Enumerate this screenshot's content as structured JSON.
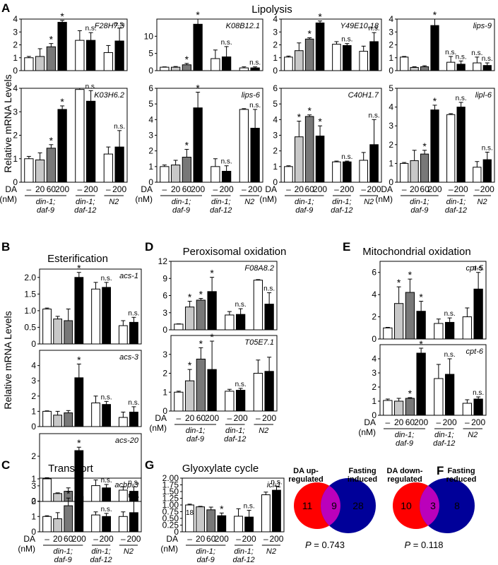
{
  "panel_letters": {
    "A": "A",
    "B": "B",
    "C": "C",
    "D": "D",
    "E": "E",
    "F": "F",
    "G": "G"
  },
  "section_titles": {
    "A": "Lipolysis",
    "B": "Esterification",
    "C": "Transport",
    "D": "Peroxisomal   oxidation",
    "E": "Mitochondrial   oxidation",
    "G": "Glyoxylate   cycle"
  },
  "ylabel": "Relative  mRNA  Levels",
  "x_axis": {
    "da_label": "DA",
    "unit_label": "(nM)",
    "doses": [
      "–",
      "20",
      "60",
      "200",
      "–",
      "200",
      "–",
      "200"
    ],
    "group_labels": [
      "din-1; daf-9",
      "din-1; daf-12",
      "N2"
    ]
  },
  "colors": {
    "c0": "#ffffff",
    "c20": "#c8c8c8",
    "c60": "#787878",
    "c200": "#000000",
    "venn_red": "#ff0000",
    "venn_blue": "#000099",
    "venn_overlap": "#bb00bb"
  },
  "chart_data": [
    {
      "id": "F28H7.3",
      "type": "bar",
      "gene": "F28H7.3",
      "ylim": [
        0,
        4
      ],
      "yticks": [
        "0",
        "1",
        "2",
        "3",
        "4"
      ],
      "categories": [
        "din-1; daf-9 –",
        "din-1; daf-9 20",
        "din-1; daf-9 60",
        "din-1; daf-9 200",
        "din-1; daf-12 –",
        "din-1; daf-12 200",
        "N2 –",
        "N2 200"
      ],
      "values": [
        1.0,
        1.1,
        1.85,
        3.75,
        2.35,
        2.35,
        1.4,
        2.3
      ],
      "errors": [
        0.1,
        0.6,
        0.25,
        0.15,
        0.75,
        0.6,
        0.55,
        1.0
      ],
      "marks": [
        "",
        "",
        "*",
        "*",
        "",
        "n.s.",
        "",
        "n.s."
      ],
      "counts": [
        "",
        "",
        "",
        "19",
        "",
        "",
        "",
        ""
      ]
    },
    {
      "id": "K08B12.1",
      "type": "bar",
      "gene": "K08B12.1",
      "ylim": [
        0,
        15
      ],
      "yticks": [
        "0",
        "5",
        "10"
      ],
      "categories": [
        "din-1; daf-9 –",
        "din-1; daf-9 20",
        "din-1; daf-9 60",
        "din-1; daf-9 200",
        "din-1; daf-12 –",
        "din-1; daf-12 200",
        "N2 –",
        "N2 200"
      ],
      "values": [
        1.0,
        1.0,
        1.7,
        13.5,
        3.5,
        4.0,
        0.8,
        0.8
      ],
      "errors": [
        0.1,
        0.2,
        0.4,
        1.5,
        2.5,
        3.0,
        0.3,
        0.3
      ],
      "marks": [
        "",
        "",
        "*",
        "*",
        "",
        "n.s.",
        "",
        "n.s."
      ],
      "counts": [
        "",
        "",
        "",
        "21",
        "",
        "",
        "",
        ""
      ]
    },
    {
      "id": "Y49E10.18",
      "type": "bar",
      "gene": "Y49E10.18",
      "ylim": [
        0,
        4
      ],
      "yticks": [
        "0",
        "1",
        "2",
        "3",
        "4"
      ],
      "categories": [
        "din-1; daf-9 –",
        "din-1; daf-9 20",
        "din-1; daf-9 60",
        "din-1; daf-9 200",
        "din-1; daf-12 –",
        "din-1; daf-12 200",
        "N2 –",
        "N2 200"
      ],
      "values": [
        1.05,
        1.55,
        2.45,
        3.7,
        2.05,
        1.95,
        1.5,
        2.25
      ],
      "errors": [
        0.08,
        0.6,
        0.1,
        0.15,
        0.2,
        0.15,
        0.4,
        0.7
      ],
      "marks": [
        "",
        "",
        "*",
        "*",
        "",
        "n.s.",
        "",
        "n.s."
      ],
      "counts": [
        "",
        "",
        "",
        "21",
        "",
        "",
        "",
        ""
      ]
    },
    {
      "id": "lips-9",
      "type": "bar",
      "gene": "lips-9",
      "ylim": [
        0,
        4
      ],
      "yticks": [
        "0",
        "1",
        "2",
        "3",
        "4"
      ],
      "categories": [
        "din-1; daf-9 –",
        "din-1; daf-9 20",
        "din-1; daf-9 60",
        "din-1; daf-9 200",
        "din-1; daf-12 –",
        "din-1; daf-12 200",
        "N2 –",
        "N2 200"
      ],
      "values": [
        1.05,
        0.25,
        0.3,
        3.5,
        0.65,
        0.5,
        0.6,
        0.4
      ],
      "errors": [
        0.05,
        0.05,
        0.08,
        0.7,
        0.45,
        0.25,
        0.45,
        0.2
      ],
      "marks": [
        "",
        "",
        "",
        "*",
        "n.s.",
        "n.s.",
        "n.s.",
        "n.s."
      ],
      "counts": [
        "",
        "",
        "",
        "25",
        "",
        "",
        "",
        ""
      ]
    },
    {
      "id": "K03H6.2",
      "type": "bar",
      "gene": "K03H6.2",
      "ylim": [
        0,
        4
      ],
      "yticks": [
        "0",
        "1",
        "2",
        "3",
        "4"
      ],
      "categories": [
        "din-1; daf-9 –",
        "din-1; daf-9 20",
        "din-1; daf-9 60",
        "din-1; daf-9 200",
        "din-1; daf-12 –",
        "din-1; daf-12 200",
        "N2 –",
        "N2 200"
      ],
      "values": [
        1.0,
        0.95,
        1.45,
        3.1,
        3.95,
        3.45,
        1.2,
        1.5
      ],
      "errors": [
        0.1,
        0.3,
        0.15,
        0.15,
        0.35,
        0.45,
        0.3,
        0.7
      ],
      "marks": [
        "",
        "",
        "*",
        "*",
        "",
        "n.s.",
        "",
        "n.s."
      ],
      "counts": [
        "",
        "",
        "",
        "23",
        "",
        "",
        "",
        ""
      ]
    },
    {
      "id": "lips-6",
      "type": "bar",
      "gene": "lips-6",
      "ylim": [
        0,
        6
      ],
      "yticks": [
        "0",
        "1",
        "2",
        "3",
        "4",
        "5",
        "6"
      ],
      "categories": [
        "din-1; daf-9 –",
        "din-1; daf-9 20",
        "din-1; daf-9 60",
        "din-1; daf-9 200",
        "din-1; daf-12 –",
        "din-1; daf-12 200",
        "N2 –",
        "N2 200"
      ],
      "values": [
        1.0,
        1.1,
        1.6,
        4.75,
        1.0,
        0.7,
        4.65,
        3.45
      ],
      "errors": [
        0.1,
        0.3,
        0.5,
        1.0,
        0.5,
        0.35,
        0.05,
        1.2
      ],
      "marks": [
        "",
        "",
        "*",
        "*",
        "",
        "n.s.",
        "",
        "n.s."
      ],
      "counts": [
        "",
        "",
        "",
        "26",
        "",
        "",
        "",
        ""
      ]
    },
    {
      "id": "C40H1.7",
      "type": "bar",
      "gene": "C40H1.7",
      "ylim": [
        0,
        6
      ],
      "yticks": [
        "0",
        "1",
        "2",
        "3",
        "4",
        "5",
        "6"
      ],
      "categories": [
        "din-1; daf-9 –",
        "din-1; daf-9 20",
        "din-1; daf-9 60",
        "din-1; daf-9 200",
        "din-1; daf-12 –",
        "din-1; daf-12 200",
        "N2 –",
        "N2 200"
      ],
      "values": [
        1.0,
        2.9,
        4.2,
        2.95,
        1.3,
        1.3,
        1.4,
        2.4
      ],
      "errors": [
        0.05,
        1.0,
        0.1,
        0.65,
        0.05,
        0.05,
        0.5,
        1.6
      ],
      "marks": [
        "",
        "*",
        "*",
        "*",
        "",
        "n.s.",
        "",
        "n.s."
      ],
      "counts": [
        "",
        "",
        "",
        "23",
        "",
        "",
        "",
        ""
      ]
    },
    {
      "id": "lipl-6",
      "type": "bar",
      "gene": "lipl-6",
      "ylim": [
        0,
        5
      ],
      "yticks": [
        "0",
        "1",
        "2",
        "3",
        "4",
        "5"
      ],
      "categories": [
        "din-1; daf-9 –",
        "din-1; daf-9 20",
        "din-1; daf-9 60",
        "din-1; daf-9 200",
        "din-1; daf-12 –",
        "din-1; daf-12 200",
        "N2 –",
        "N2 200"
      ],
      "values": [
        1.0,
        1.15,
        1.5,
        3.85,
        3.6,
        4.0,
        0.8,
        1.2
      ],
      "errors": [
        0.05,
        0.55,
        0.2,
        0.25,
        0.05,
        0.25,
        0.3,
        0.4
      ],
      "marks": [
        "",
        "",
        "*",
        "*",
        "",
        "n.s.",
        "",
        "n.s."
      ],
      "counts": [
        "",
        "",
        "",
        "24",
        "",
        "",
        "",
        ""
      ]
    },
    {
      "id": "acs-1",
      "type": "bar",
      "gene": "acs-1",
      "ylim": [
        0,
        2.25
      ],
      "yticks": [
        "0",
        "0.5",
        "1.0",
        "1.5",
        "2.0"
      ],
      "categories": [
        "din-1; daf-9 –",
        "din-1; daf-9 20",
        "din-1; daf-9 60",
        "din-1; daf-9 200",
        "din-1; daf-12 –",
        "din-1; daf-12 200",
        "N2 –",
        "N2 200"
      ],
      "values": [
        1.05,
        0.75,
        0.7,
        2.0,
        1.65,
        1.7,
        0.55,
        0.65
      ],
      "errors": [
        0.03,
        0.08,
        0.35,
        0.15,
        0.2,
        0.15,
        0.15,
        0.15
      ],
      "marks": [
        "",
        "",
        "",
        "*",
        "",
        "n.s.",
        "",
        "n.s."
      ],
      "counts": [
        "",
        "",
        "",
        "20",
        "",
        "",
        "",
        ""
      ]
    },
    {
      "id": "acs-3",
      "type": "bar",
      "gene": "acs-3",
      "ylim": [
        0,
        5
      ],
      "yticks": [
        "0",
        "1",
        "2",
        "3",
        "4"
      ],
      "categories": [
        "din-1; daf-9 –",
        "din-1; daf-9 20",
        "din-1; daf-9 60",
        "din-1; daf-9 200",
        "din-1; daf-12 –",
        "din-1; daf-12 200",
        "N2 –",
        "N2 200"
      ],
      "values": [
        1.0,
        0.75,
        0.9,
        3.2,
        1.55,
        1.45,
        0.6,
        0.95
      ],
      "errors": [
        0.03,
        0.25,
        0.15,
        0.9,
        0.45,
        0.2,
        0.35,
        0.35
      ],
      "marks": [
        "",
        "",
        "",
        "*",
        "",
        "n.s.",
        "",
        "n.s."
      ],
      "counts": [
        "",
        "",
        "",
        "23",
        "",
        "",
        "",
        ""
      ]
    },
    {
      "id": "acs-20",
      "type": "bar",
      "gene": "acs-20",
      "ylim": [
        0,
        3
      ],
      "yticks": [
        "0",
        "1",
        "2"
      ],
      "categories": [
        "din-1; daf-9 –",
        "din-1; daf-9 20",
        "din-1; daf-9 60",
        "din-1; daf-9 200",
        "din-1; daf-12 –",
        "din-1; daf-12 200",
        "N2 –",
        "N2 200"
      ],
      "values": [
        1.0,
        0.35,
        0.45,
        2.25,
        0.7,
        0.6,
        0.5,
        0.45
      ],
      "errors": [
        0.05,
        0.03,
        0.15,
        0.15,
        0.25,
        0.15,
        0.15,
        0.2
      ],
      "marks": [
        "",
        "",
        "",
        "*",
        "",
        "n.s.",
        "",
        "n.s."
      ],
      "counts": [
        "",
        "",
        "",
        "22",
        "",
        "",
        "",
        ""
      ]
    },
    {
      "id": "acbp-3",
      "type": "bar",
      "gene": "acbp-3",
      "ylim": [
        0,
        3.5
      ],
      "yticks": [
        "0",
        "1",
        "2",
        "3"
      ],
      "categories": [
        "din-1; daf-9 –",
        "din-1; daf-9 20",
        "din-1; daf-9 60",
        "din-1; daf-9 200",
        "din-1; daf-12 –",
        "din-1; daf-12 200",
        "N2 –",
        "N2 200"
      ],
      "values": [
        1.0,
        0.85,
        1.7,
        2.3,
        1.1,
        1.0,
        1.0,
        1.25
      ],
      "errors": [
        0.05,
        0.4,
        0.5,
        0.75,
        0.2,
        0.2,
        0.3,
        0.85
      ],
      "marks": [
        "",
        "",
        "*",
        "*",
        "",
        "n.s.",
        "",
        "n.s."
      ],
      "counts": [
        "",
        "",
        "",
        "20",
        "",
        "",
        "",
        ""
      ]
    },
    {
      "id": "F08A8.2",
      "type": "bar",
      "gene": "F08A8.2",
      "ylim": [
        0,
        12
      ],
      "yticks": [
        "0",
        "3",
        "6",
        "9",
        "12"
      ],
      "categories": [
        "din-1; daf-9 –",
        "din-1; daf-9 20",
        "din-1; daf-9 60",
        "din-1; daf-9 200",
        "din-1; daf-12 –",
        "din-1; daf-12 200",
        "N2 –",
        "N2 200"
      ],
      "values": [
        1.0,
        4.0,
        5.2,
        6.7,
        2.6,
        2.7,
        8.7,
        4.5
      ],
      "errors": [
        0.05,
        1.0,
        0.3,
        2.5,
        0.6,
        1.0,
        0.1,
        2.0
      ],
      "marks": [
        "",
        "*",
        "*",
        "*",
        "",
        "n.s.",
        "",
        "n.s."
      ],
      "counts": [
        "",
        "",
        "",
        "22",
        "",
        "",
        "",
        ""
      ]
    },
    {
      "id": "T05E7.1",
      "type": "bar",
      "gene": "T05E7.1",
      "ylim": [
        0,
        4
      ],
      "yticks": [
        "0",
        "1",
        "2",
        "3"
      ],
      "categories": [
        "din-1; daf-9 –",
        "din-1; daf-9 20",
        "din-1; daf-9 60",
        "din-1; daf-9 200",
        "din-1; daf-12 –",
        "din-1; daf-12 200",
        "N2 –",
        "N2 200"
      ],
      "values": [
        1.0,
        1.6,
        2.75,
        2.2,
        1.05,
        1.1,
        2.0,
        2.1
      ],
      "errors": [
        0.05,
        0.6,
        0.6,
        1.5,
        0.1,
        0.1,
        0.7,
        0.75
      ],
      "marks": [
        "",
        "*",
        "*",
        "*",
        "",
        "n.s.",
        "",
        ""
      ],
      "counts": [
        "",
        "",
        "",
        "22",
        "",
        "",
        "",
        ""
      ]
    },
    {
      "id": "cpt-5",
      "type": "bar",
      "gene": "cpt-5",
      "ylim": [
        0,
        7
      ],
      "yticks": [
        "0",
        "2",
        "4",
        "6"
      ],
      "categories": [
        "din-1; daf-9 –",
        "din-1; daf-9 20",
        "din-1; daf-9 60",
        "din-1; daf-9 200",
        "din-1; daf-12 –",
        "din-1; daf-12 200",
        "N2 –",
        "N2 200"
      ],
      "values": [
        1.0,
        3.2,
        4.2,
        2.5,
        1.4,
        1.5,
        2.0,
        4.5
      ],
      "errors": [
        0.05,
        1.5,
        1.2,
        0.9,
        0.4,
        0.4,
        0.8,
        1.5
      ],
      "marks": [
        "",
        "*",
        "*",
        "*",
        "",
        "n.s.",
        "",
        "n.s."
      ],
      "counts": [
        "",
        "",
        "",
        "23",
        "",
        "",
        "",
        ""
      ]
    },
    {
      "id": "cpt-6",
      "type": "bar",
      "gene": "cpt-6",
      "ylim": [
        0,
        5
      ],
      "yticks": [
        "0",
        "1",
        "2",
        "3",
        "4"
      ],
      "categories": [
        "din-1; daf-9 –",
        "din-1; daf-9 20",
        "din-1; daf-9 60",
        "din-1; daf-9 200",
        "din-1; daf-12 –",
        "din-1; daf-12 200",
        "N2 –",
        "N2 200"
      ],
      "values": [
        1.05,
        1.0,
        1.2,
        4.4,
        2.6,
        2.9,
        0.85,
        1.15
      ],
      "errors": [
        0.1,
        0.2,
        0.05,
        0.35,
        1.0,
        1.1,
        0.25,
        0.15
      ],
      "marks": [
        "",
        "",
        "*",
        "*",
        "",
        "n.s.",
        "",
        "n.s."
      ],
      "counts": [
        "",
        "",
        "",
        "24",
        "",
        "",
        "",
        ""
      ]
    },
    {
      "id": "icl-1",
      "type": "bar",
      "gene": "icl-1",
      "ylim": [
        0,
        2
      ],
      "yticks": [
        "0",
        "0.25",
        "0.50",
        "0.75",
        "1.00",
        "1.25",
        "1.50",
        "1.75",
        "2.00"
      ],
      "categories": [
        "din-1; daf-9 –",
        "din-1; daf-9 20",
        "din-1; daf-9 60",
        "din-1; daf-9 200",
        "din-1; daf-12 –",
        "din-1; daf-12 200",
        "N2 –",
        "N2 200"
      ],
      "values": [
        1.0,
        0.93,
        0.82,
        0.6,
        0.58,
        0.55,
        1.38,
        1.55
      ],
      "errors": [
        0.03,
        0.02,
        0.1,
        0.1,
        0.28,
        0.25,
        0.1,
        0.15
      ],
      "marks": [
        "",
        "",
        "",
        "*",
        "",
        "n.s.",
        "",
        "n.s."
      ],
      "counts": [
        "18",
        "",
        "",
        "",
        "",
        "",
        "",
        ""
      ]
    }
  ],
  "venn": [
    {
      "left_label": [
        "DA  up-",
        "regulated"
      ],
      "right_label": [
        "Fasting",
        "induced"
      ],
      "left_only": "11",
      "overlap": "9",
      "right_only": "28",
      "p_text": "= 0.743"
    },
    {
      "left_label": [
        "DA  down-",
        "regulated"
      ],
      "right_label": [
        "Fasting",
        "reduced"
      ],
      "left_only": "10",
      "overlap": "3",
      "right_only": "8",
      "p_text": "= 0.118"
    }
  ],
  "p_label": "P"
}
